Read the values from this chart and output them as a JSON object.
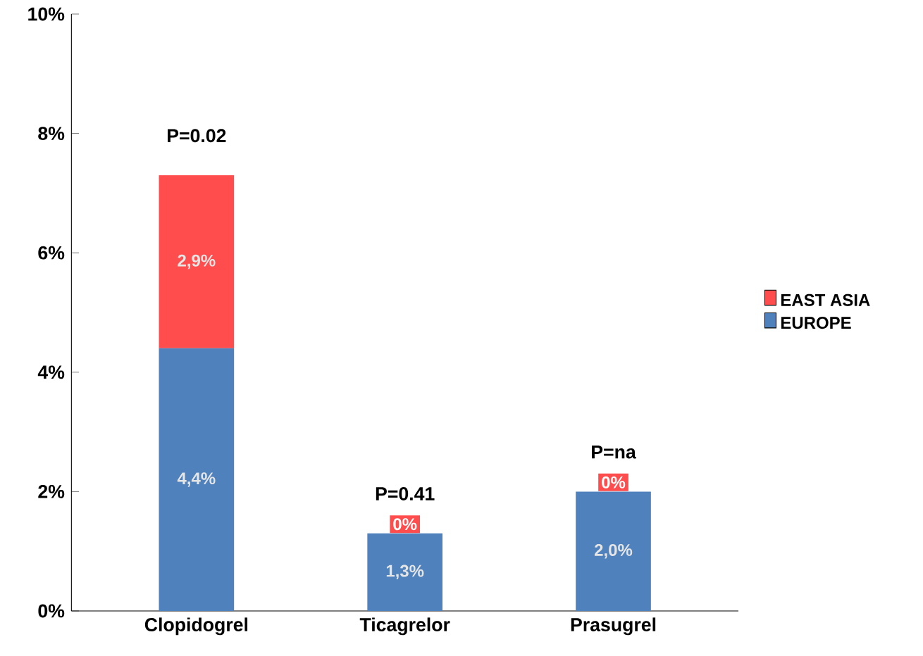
{
  "chart_data": {
    "type": "bar",
    "stacked": true,
    "categories": [
      "Clopidogrel",
      "Ticagrelor",
      "Prasugrel"
    ],
    "series": [
      {
        "name": "EUROPE",
        "color": "#4f81bd",
        "values": [
          4.4,
          1.3,
          2.0
        ],
        "value_labels": [
          "4,4%",
          "1,3%",
          "2,0%"
        ]
      },
      {
        "name": "EAST ASIA",
        "color": "#ff4d4d",
        "values": [
          2.9,
          0,
          0
        ],
        "value_labels": [
          "2,9%",
          "0%",
          "0%"
        ]
      }
    ],
    "ylim": [
      0,
      10
    ],
    "yticks": [
      {
        "value": 0,
        "label": "0%"
      },
      {
        "value": 2,
        "label": "2%"
      },
      {
        "value": 4,
        "label": "4%"
      },
      {
        "value": 6,
        "label": "6%"
      },
      {
        "value": 8,
        "label": "8%"
      },
      {
        "value": 10,
        "label": "10%"
      }
    ],
    "annotations": [
      {
        "text": "P=0.02",
        "x": "Clopidogrel",
        "y": 7.3
      },
      {
        "text": "P=0.41",
        "x": "Ticagrelor",
        "y": 1.3
      },
      {
        "text": "P=na",
        "x": "Prasugrel",
        "y": 2.0
      }
    ],
    "legend": "right",
    "grid": false
  }
}
